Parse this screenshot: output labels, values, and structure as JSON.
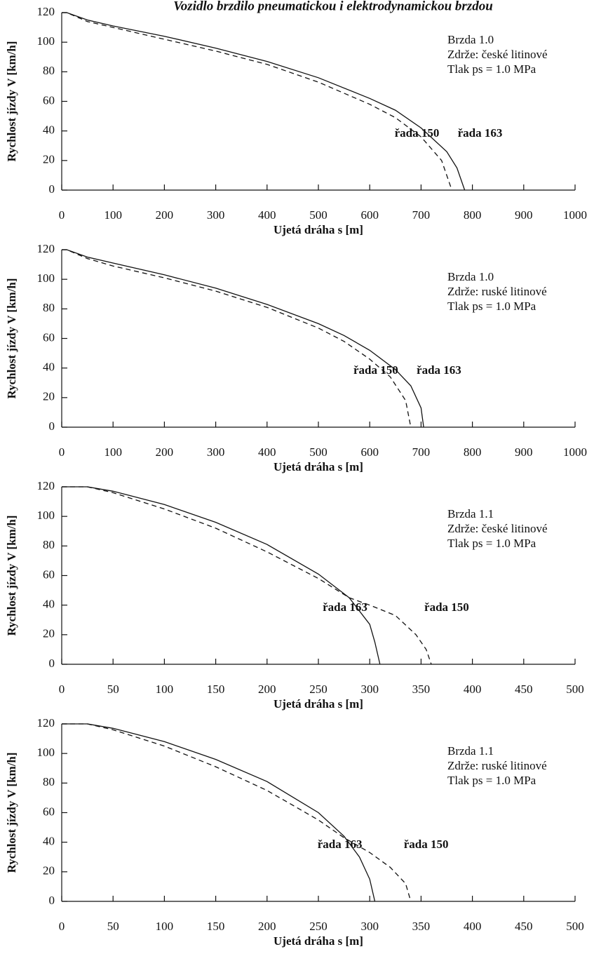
{
  "chart_data": [
    {
      "type": "line",
      "title": "Vozidlo brzdilo pneumatickou i elektrodynamickou brzdou",
      "x_label": "Ujetá dráha s [m]",
      "y_label": "Rychlost jízdy V [km/h]",
      "annotations": [
        "Brzda 1.0",
        "Zdrže: české litinové",
        "Tlak ps = 1.0 MPa"
      ],
      "xlim": [
        0,
        1000
      ],
      "xticks": [
        0,
        100,
        200,
        300,
        400,
        500,
        600,
        700,
        800,
        900,
        1000
      ],
      "ylim": [
        0,
        120
      ],
      "yticks": [
        0,
        20,
        40,
        60,
        80,
        100,
        120
      ],
      "grid": false,
      "series": [
        {
          "name": "řada 163",
          "color": "#111",
          "line_style": "solid",
          "x": [
            0,
            10,
            50,
            100,
            200,
            300,
            400,
            500,
            600,
            650,
            700,
            750,
            770,
            785
          ],
          "values": [
            120,
            120,
            115,
            111,
            104,
            96,
            87,
            76,
            62,
            54,
            42,
            26,
            15,
            0
          ]
        },
        {
          "name": "řada 150",
          "color": "#111",
          "line_style": "dashed",
          "x": [
            0,
            10,
            50,
            100,
            200,
            300,
            400,
            500,
            600,
            650,
            700,
            740,
            760
          ],
          "values": [
            120,
            120,
            114,
            110,
            102,
            94,
            85,
            73,
            58,
            49,
            36,
            20,
            0
          ]
        }
      ]
    },
    {
      "type": "line",
      "x_label": "Ujetá dráha s [m]",
      "y_label": "Rychlost jízdy V [km/h]",
      "annotations": [
        "Brzda 1.0",
        "Zdrže: ruské litinové",
        "Tlak ps = 1.0 MPa"
      ],
      "xlim": [
        0,
        1000
      ],
      "xticks": [
        0,
        100,
        200,
        300,
        400,
        500,
        600,
        700,
        800,
        900,
        1000
      ],
      "ylim": [
        0,
        120
      ],
      "yticks": [
        0,
        20,
        40,
        60,
        80,
        100,
        120
      ],
      "grid": false,
      "series": [
        {
          "name": "řada 163",
          "color": "#111",
          "line_style": "solid",
          "x": [
            0,
            10,
            50,
            100,
            200,
            300,
            400,
            500,
            550,
            600,
            650,
            680,
            700,
            705
          ],
          "values": [
            120,
            120,
            115,
            111,
            103,
            94,
            83,
            70,
            62,
            52,
            39,
            28,
            13,
            0
          ]
        },
        {
          "name": "řada 150",
          "color": "#111",
          "line_style": "dashed",
          "x": [
            0,
            10,
            50,
            100,
            200,
            300,
            400,
            500,
            550,
            600,
            640,
            670,
            680
          ],
          "values": [
            120,
            120,
            114,
            109,
            101,
            92,
            81,
            67,
            58,
            46,
            34,
            18,
            0
          ]
        }
      ]
    },
    {
      "type": "line",
      "x_label": "Ujetá dráha s [m]",
      "y_label": "Rychlost jízdy V [km/h]",
      "annotations": [
        "Brzda 1.1",
        "Zdrže: české litinové",
        "Tlak ps = 1.0 MPa"
      ],
      "xlim": [
        0,
        500
      ],
      "xticks": [
        0,
        50,
        100,
        150,
        200,
        250,
        300,
        350,
        400,
        450,
        500
      ],
      "ylim": [
        0,
        120
      ],
      "yticks": [
        0,
        20,
        40,
        60,
        80,
        100,
        120
      ],
      "grid": false,
      "series": [
        {
          "name": "řada 163",
          "color": "#111",
          "line_style": "solid",
          "x": [
            0,
            25,
            50,
            100,
            150,
            200,
            250,
            280,
            300,
            305,
            310
          ],
          "values": [
            120,
            120,
            117,
            108,
            96,
            81,
            61,
            45,
            27,
            15,
            0
          ]
        },
        {
          "name": "řada 150",
          "color": "#111",
          "line_style": "dashed",
          "x": [
            0,
            25,
            50,
            100,
            150,
            200,
            250,
            280,
            300,
            325,
            345,
            355,
            360
          ],
          "values": [
            120,
            120,
            116,
            105,
            92,
            76,
            58,
            45,
            40,
            33,
            20,
            10,
            0
          ]
        }
      ]
    },
    {
      "type": "line",
      "x_label": "Ujetá dráha s [m]",
      "y_label": "Rychlost jízdy V [km/h]",
      "annotations": [
        "Brzda 1.1",
        "Zdrže: ruské litinové",
        "Tlak ps = 1.0 MPa"
      ],
      "xlim": [
        0,
        500
      ],
      "xticks": [
        0,
        50,
        100,
        150,
        200,
        250,
        300,
        350,
        400,
        450,
        500
      ],
      "ylim": [
        0,
        120
      ],
      "yticks": [
        0,
        20,
        40,
        60,
        80,
        100,
        120
      ],
      "grid": false,
      "series": [
        {
          "name": "řada 163",
          "color": "#111",
          "line_style": "solid",
          "x": [
            0,
            25,
            50,
            100,
            150,
            200,
            250,
            275,
            290,
            300,
            305
          ],
          "values": [
            120,
            120,
            117,
            108,
            96,
            81,
            60,
            44,
            30,
            15,
            0
          ]
        },
        {
          "name": "řada 150",
          "color": "#111",
          "line_style": "dashed",
          "x": [
            0,
            25,
            50,
            100,
            150,
            200,
            250,
            275,
            300,
            320,
            335,
            340
          ],
          "values": [
            120,
            120,
            116,
            105,
            91,
            75,
            55,
            43,
            33,
            23,
            12,
            0
          ]
        }
      ]
    }
  ]
}
